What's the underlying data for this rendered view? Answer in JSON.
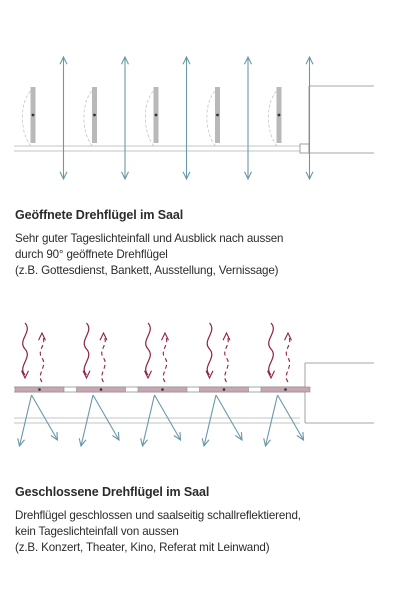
{
  "open_panel": {
    "title": "Geöffnete Drehflügel im Saal",
    "lines": [
      "Sehr guter Tageslichteinfall und Ausblick nach aussen",
      "durch 90° geöffnete Drehflügel",
      "(z.B. Gottesdienst, Bankett, Ausstellung, Vernissage)"
    ]
  },
  "closed_panel": {
    "title": "Geschlossene Drehflügel im Saal",
    "lines": [
      "Drehflügel geschlossen und saalseitig schallreflektierend,",
      "kein Tageslichteinfall von aussen",
      "(z.B. Konzert, Theater, Kino, Referat mit Leinwand)"
    ]
  },
  "colors": {
    "light_arrow": "#6a98a8",
    "sound_wave": "#8e1f4a",
    "wall": "#8a8a8a",
    "panel": "#b9b9b9",
    "closed_panel_fill": "#c9a6b1"
  },
  "panel_count": 5
}
